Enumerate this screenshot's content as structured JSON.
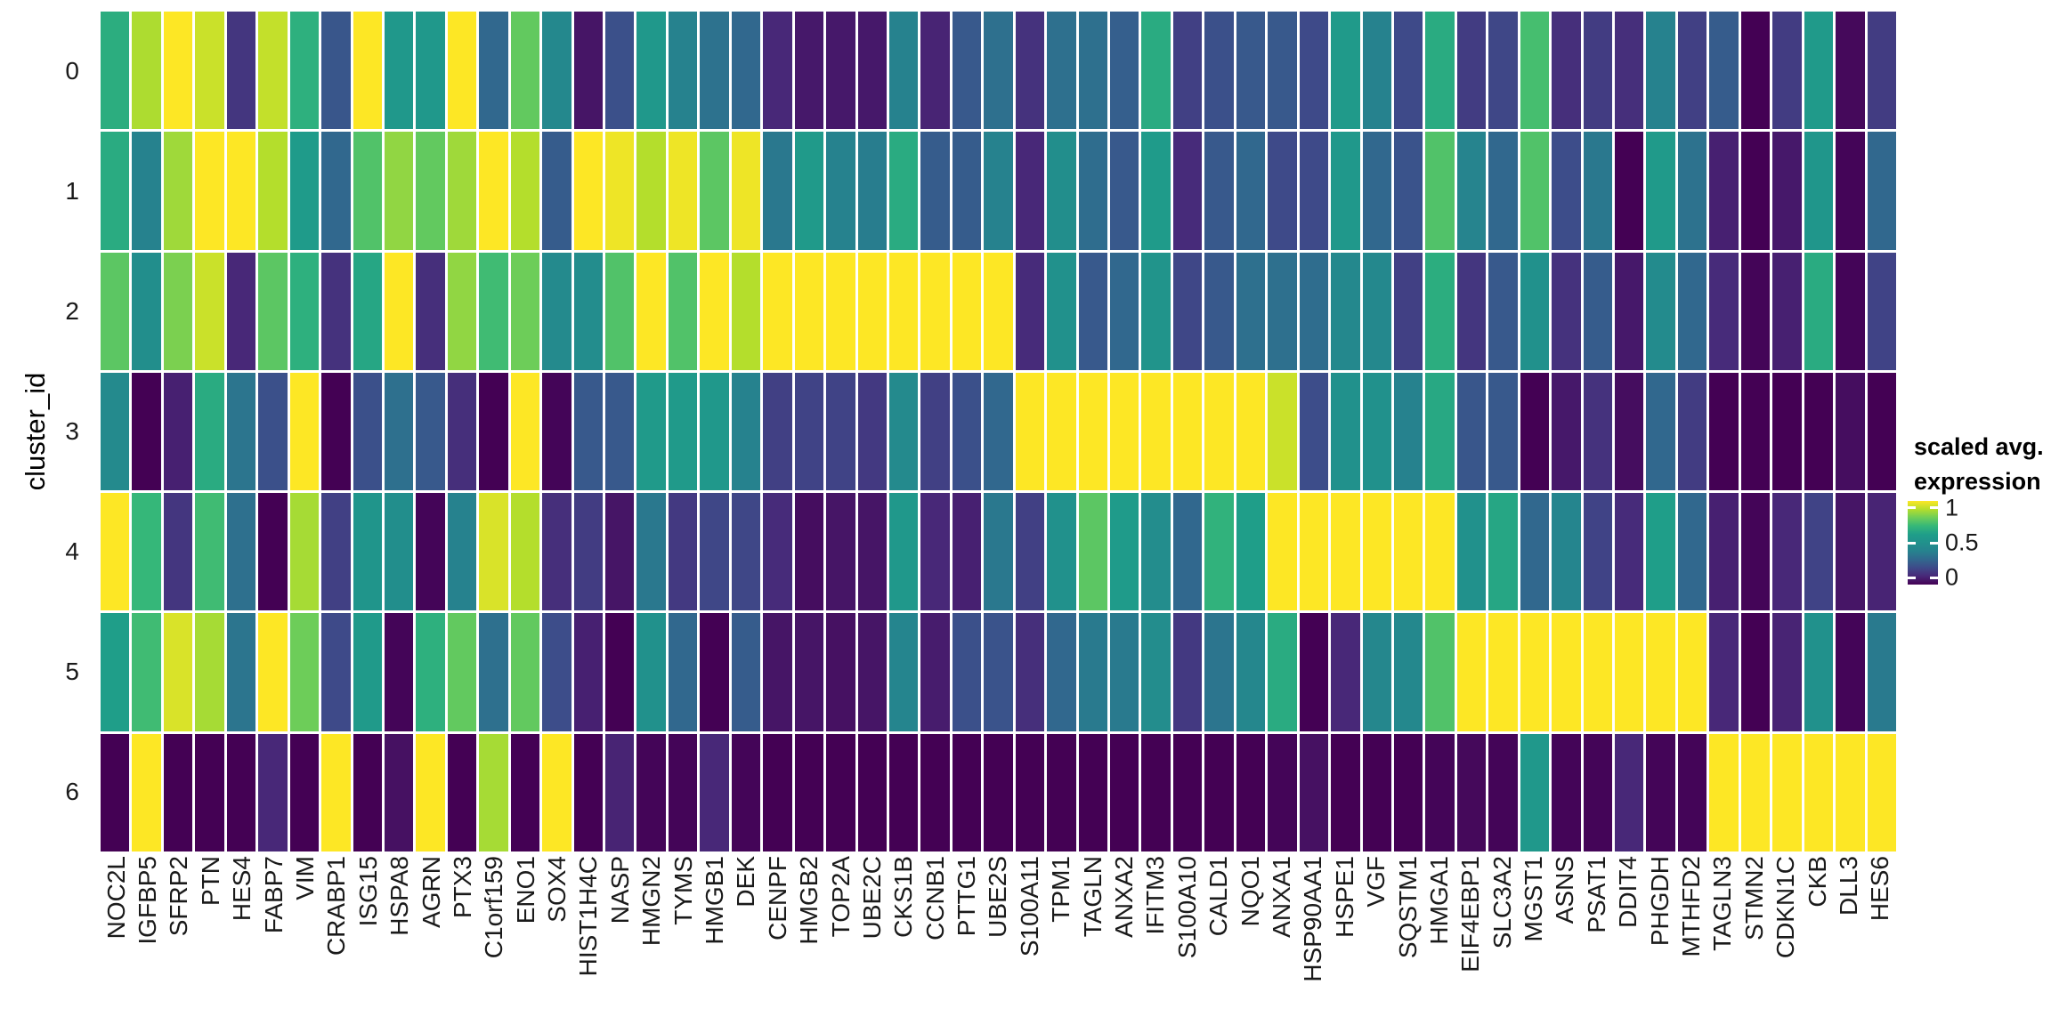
{
  "figure": {
    "y_axis_title": "cluster_id",
    "legend": {
      "title_line1": "scaled avg.",
      "title_line2": "expression",
      "tick_labels": [
        "1",
        "0.5",
        "0"
      ],
      "tick_fractions_from_top": [
        0.08,
        0.5,
        0.92
      ]
    }
  },
  "chart_data": {
    "type": "heatmap",
    "title": "",
    "xlabel": "",
    "ylabel": "cluster_id",
    "legend_title": "scaled avg. expression",
    "value_range": [
      0,
      1
    ],
    "grid": false,
    "legend_position": "right",
    "rows": [
      "0",
      "1",
      "2",
      "3",
      "4",
      "5",
      "6"
    ],
    "columns": [
      "NOC2L",
      "IGFBP5",
      "SFRP2",
      "PTN",
      "HES4",
      "FABP7",
      "VIM",
      "CRABP1",
      "ISG15",
      "HSPA8",
      "AGRN",
      "PTX3",
      "C1orf159",
      "ENO1",
      "SOX4",
      "HIST1H4C",
      "NASP",
      "HMGN2",
      "TYMS",
      "HMGB1",
      "DEK",
      "CENPF",
      "HMGB2",
      "TOP2A",
      "UBE2C",
      "CKS1B",
      "CCNB1",
      "PTTG1",
      "UBE2S",
      "S100A11",
      "TPM1",
      "TAGLN",
      "ANXA2",
      "IFITM3",
      "S100A10",
      "CALD1",
      "NQO1",
      "ANXA1",
      "HSP90AA1",
      "HSPE1",
      "VGF",
      "SQSTM1",
      "HMGA1",
      "EIF4EBP1",
      "SLC3A2",
      "MGST1",
      "ASNS",
      "PSAT1",
      "DDIT4",
      "PHGDH",
      "MTHFD2",
      "TAGLN3",
      "STMN2",
      "CDKN1C",
      "CKB",
      "DLL3",
      "HES6"
    ],
    "values": [
      [
        0.66,
        0.89,
        1,
        0.93,
        0.14,
        0.92,
        0.67,
        0.24,
        1,
        0.55,
        0.55,
        1,
        0.3,
        0.78,
        0.44,
        0.05,
        0.22,
        0.55,
        0.4,
        0.34,
        0.3,
        0.1,
        0.06,
        0.06,
        0.06,
        0.4,
        0.09,
        0.25,
        0.33,
        0.13,
        0.33,
        0.33,
        0.27,
        0.65,
        0.17,
        0.22,
        0.25,
        0.25,
        0.2,
        0.57,
        0.4,
        0.2,
        0.65,
        0.16,
        0.19,
        0.73,
        0.12,
        0.16,
        0.12,
        0.4,
        0.17,
        0.26,
        0,
        0.16,
        0.57,
        0.02,
        0.16
      ],
      [
        0.65,
        0.4,
        0.87,
        1,
        1,
        0.9,
        0.58,
        0.3,
        0.75,
        0.85,
        0.78,
        0.87,
        1,
        0.9,
        0.26,
        1,
        0.98,
        0.9,
        0.98,
        0.77,
        0.98,
        0.36,
        0.57,
        0.4,
        0.38,
        0.65,
        0.26,
        0.26,
        0.4,
        0.1,
        0.48,
        0.32,
        0.25,
        0.58,
        0.11,
        0.25,
        0.3,
        0.2,
        0.2,
        0.55,
        0.3,
        0.23,
        0.75,
        0.41,
        0.3,
        0.75,
        0.21,
        0.36,
        0,
        0.57,
        0.34,
        0.08,
        0,
        0.06,
        0.54,
        0.01,
        0.3
      ],
      [
        0.77,
        0.48,
        0.82,
        0.93,
        0.1,
        0.77,
        0.67,
        0.13,
        0.63,
        1,
        0.12,
        0.85,
        0.72,
        0.8,
        0.45,
        0.47,
        0.75,
        1,
        0.75,
        1,
        0.9,
        1,
        1,
        1,
        1,
        1,
        1,
        1,
        1,
        0.11,
        0.5,
        0.25,
        0.3,
        0.52,
        0.19,
        0.25,
        0.33,
        0.33,
        0.32,
        0.44,
        0.44,
        0.17,
        0.66,
        0.14,
        0.25,
        0.5,
        0.13,
        0.26,
        0.06,
        0.46,
        0.3,
        0.11,
        0.01,
        0.08,
        0.65,
        0.01,
        0.18
      ],
      [
        0.45,
        0,
        0.08,
        0.65,
        0.35,
        0.22,
        1,
        0,
        0.22,
        0.33,
        0.25,
        0.12,
        0,
        1,
        0.01,
        0.25,
        0.25,
        0.57,
        0.57,
        0.55,
        0.4,
        0.17,
        0.18,
        0.18,
        0.15,
        0.45,
        0.17,
        0.22,
        0.3,
        1,
        1,
        1,
        1,
        1,
        1,
        1,
        1,
        0.93,
        0.21,
        0.5,
        0.5,
        0.4,
        0.64,
        0.24,
        0.25,
        0,
        0.06,
        0.13,
        0.03,
        0.3,
        0.16,
        0,
        0,
        0,
        0,
        0.03,
        0
      ],
      [
        1,
        0.7,
        0.14,
        0.72,
        0.33,
        0,
        0.88,
        0.17,
        0.53,
        0.48,
        0.01,
        0.4,
        0.95,
        0.9,
        0.12,
        0.16,
        0.05,
        0.36,
        0.15,
        0.19,
        0.19,
        0.11,
        0.03,
        0.05,
        0.05,
        0.55,
        0.1,
        0.08,
        0.36,
        0.17,
        0.5,
        0.77,
        0.58,
        0.47,
        0.3,
        0.68,
        0.6,
        1,
        1,
        1,
        1,
        1,
        1,
        0.5,
        0.63,
        0.3,
        0.42,
        0.18,
        0.11,
        0.6,
        0.3,
        0.08,
        0.01,
        0.1,
        0.18,
        0.05,
        0.09
      ],
      [
        0.6,
        0.72,
        0.95,
        0.88,
        0.35,
        1,
        0.8,
        0.2,
        0.57,
        0.01,
        0.67,
        0.78,
        0.33,
        0.78,
        0.21,
        0.08,
        0,
        0.5,
        0.3,
        0,
        0.26,
        0.05,
        0.05,
        0.04,
        0.05,
        0.42,
        0.07,
        0.22,
        0.23,
        0.12,
        0.3,
        0.37,
        0.37,
        0.47,
        0.15,
        0.35,
        0.43,
        0.65,
        0,
        0.1,
        0.43,
        0.44,
        0.75,
        1,
        1,
        1,
        1,
        1,
        1,
        1,
        1,
        0.1,
        0,
        0.09,
        0.5,
        0.01,
        0.37
      ],
      [
        0,
        1,
        0,
        0,
        0,
        0.1,
        0,
        1,
        0,
        0.04,
        1,
        0,
        0.88,
        0,
        1,
        0,
        0.09,
        0.01,
        0.01,
        0.1,
        0.01,
        0,
        0,
        0,
        0,
        0,
        0,
        0,
        0,
        0,
        0,
        0,
        0,
        0,
        0,
        0,
        0,
        0.01,
        0.04,
        0,
        0,
        0,
        0.01,
        0.02,
        0.01,
        0.55,
        0.01,
        0.01,
        0.1,
        0.01,
        0.01,
        1,
        1,
        1,
        1,
        1,
        1
      ]
    ],
    "colormap": {
      "name": "viridis",
      "stops": [
        "#440154",
        "#482878",
        "#3e4a89",
        "#31688e",
        "#26828e",
        "#21918c",
        "#1f9e89",
        "#35b779",
        "#6dcd59",
        "#b4de2c",
        "#fde725"
      ]
    }
  }
}
